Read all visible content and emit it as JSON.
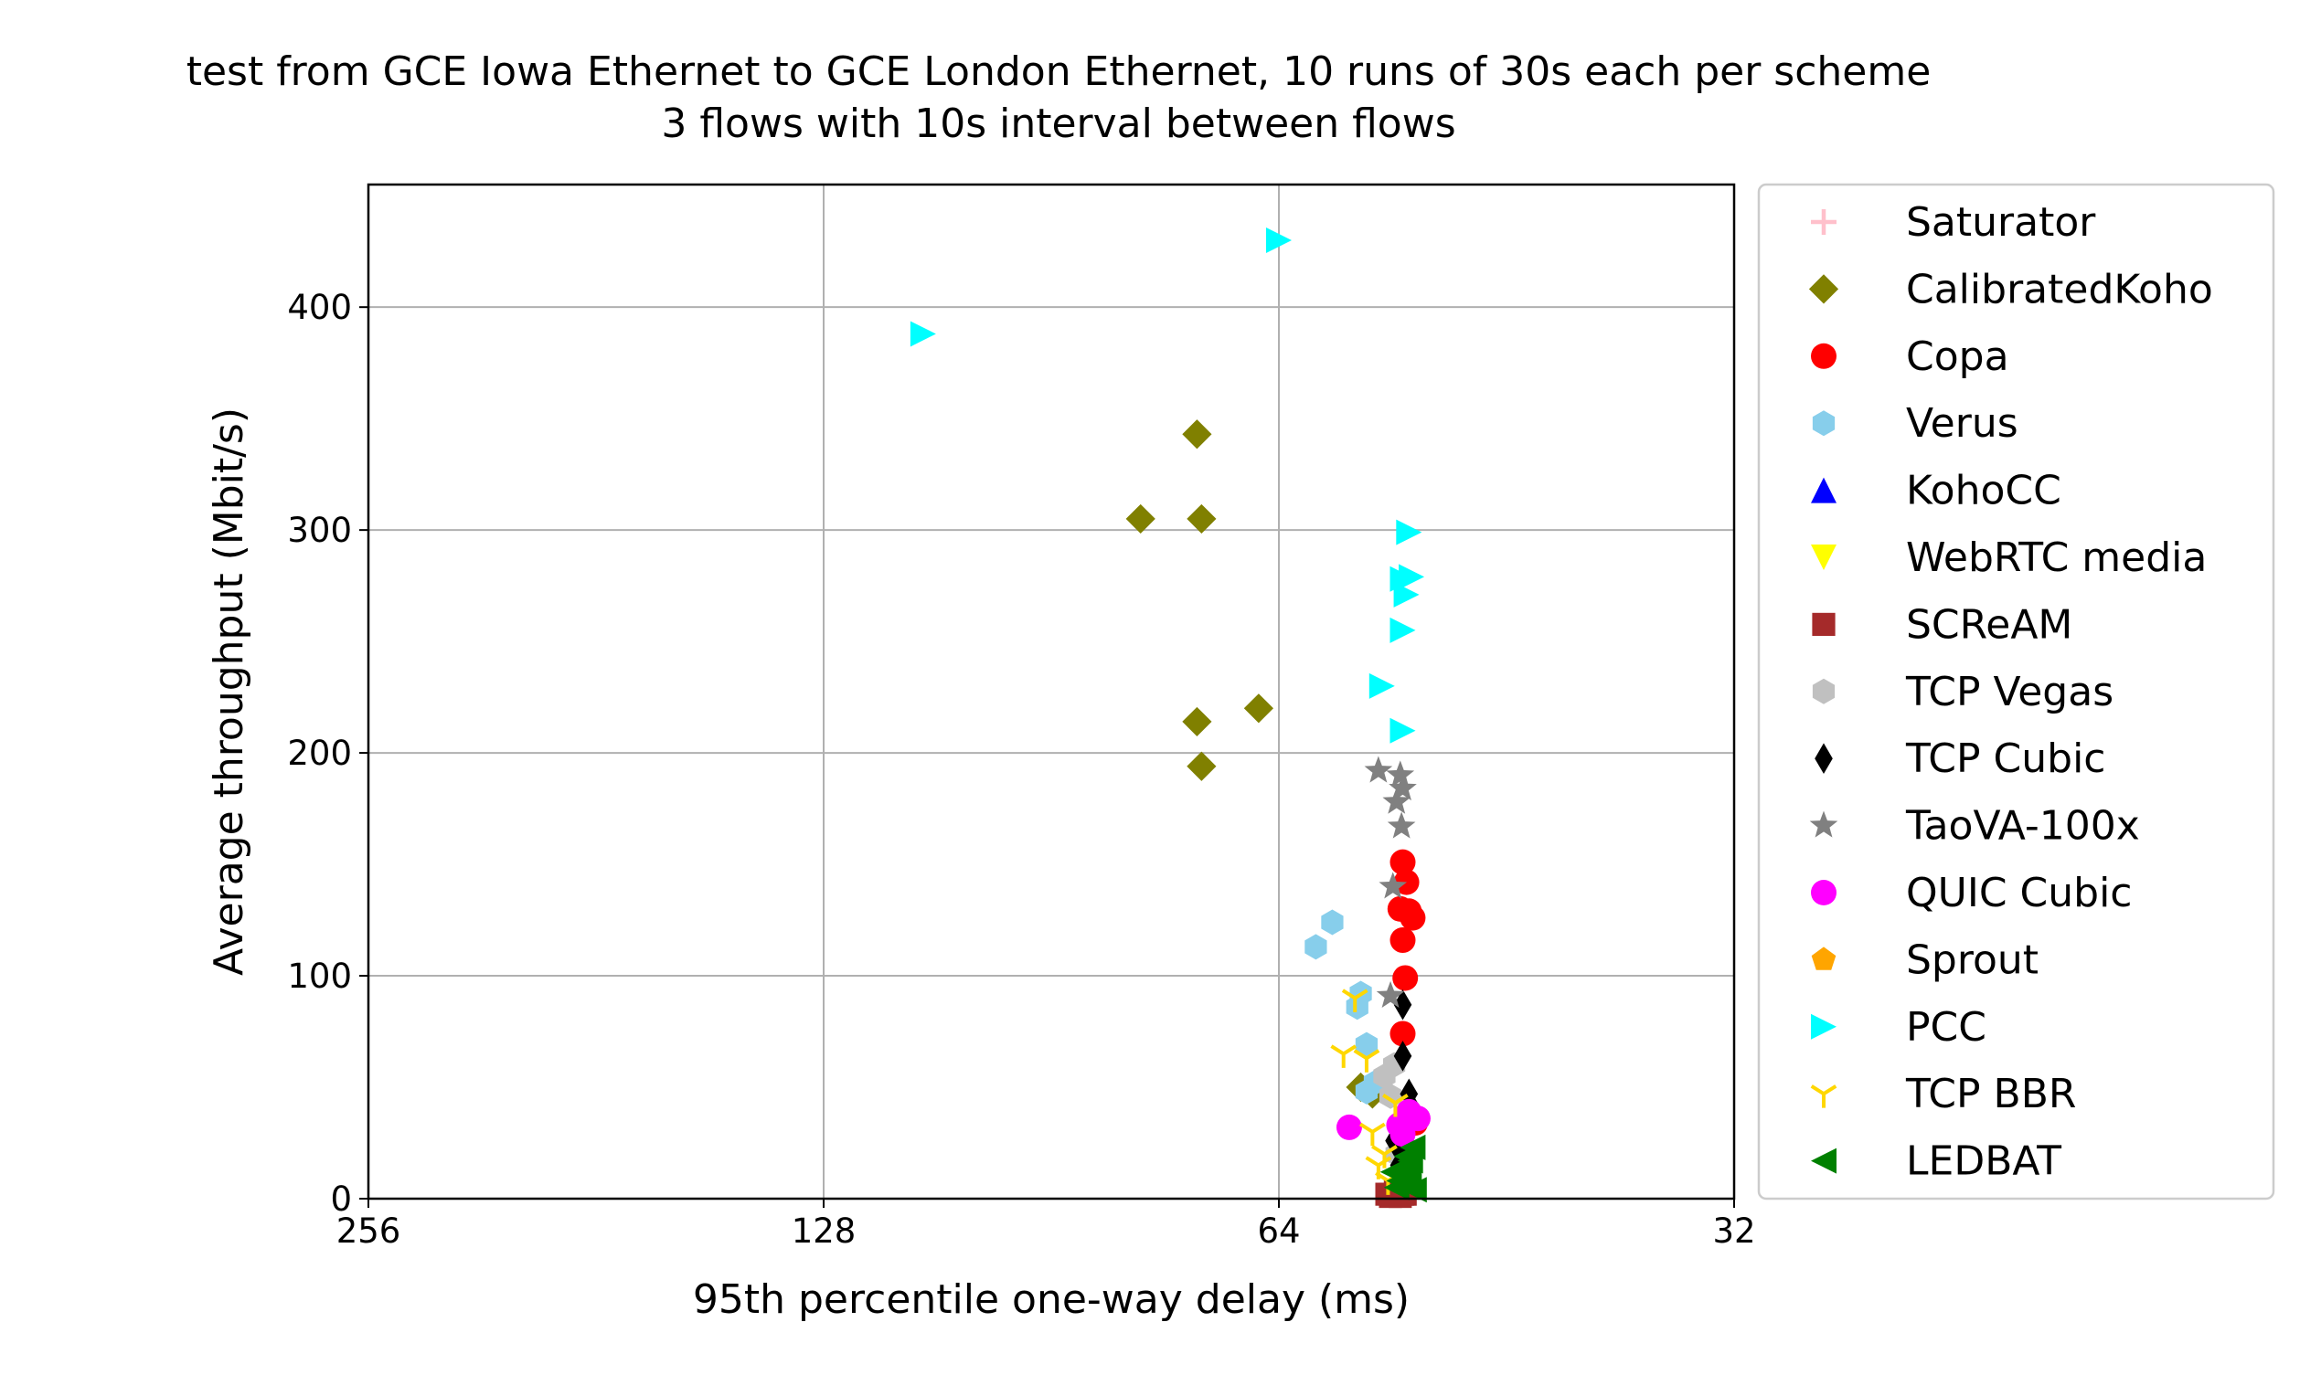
{
  "chart_data": {
    "type": "scatter",
    "title": [
      "test from GCE Iowa Ethernet to GCE London Ethernet, 10 runs of 30s each per scheme",
      "3 flows with 10s interval between flows"
    ],
    "xlabel": "95th percentile one-way delay (ms)",
    "ylabel": "Average throughput (Mbit/s)",
    "x_scale": "log2",
    "x_inverted": true,
    "xlim": [
      256,
      32
    ],
    "ylim": [
      0,
      455
    ],
    "xticks": [
      256,
      128,
      64,
      32
    ],
    "xtick_labels": [
      "256",
      "128",
      "64",
      "32"
    ],
    "yticks": [
      0,
      100,
      200,
      300,
      400
    ],
    "ytick_labels": [
      "0",
      "100",
      "200",
      "300",
      "400"
    ],
    "grid": true,
    "legend_position": "outside-right",
    "series": [
      {
        "name": "Saturator",
        "marker": "plus",
        "color": "#ffc0cb",
        "points": []
      },
      {
        "name": "CalibratedKoho",
        "marker": "diamond",
        "color": "#808000",
        "points": [
          [
            79,
            305
          ],
          [
            72.5,
            343
          ],
          [
            72,
            305
          ],
          [
            72.5,
            214
          ],
          [
            72,
            194
          ],
          [
            66,
            220
          ],
          [
            56.5,
            50
          ],
          [
            55.5,
            47
          ]
        ]
      },
      {
        "name": "Copa",
        "marker": "circle",
        "color": "#ff0000",
        "points": [
          [
            53,
            151
          ],
          [
            52.7,
            142
          ],
          [
            52.5,
            129
          ],
          [
            52.2,
            126
          ],
          [
            53.2,
            130
          ],
          [
            53,
            116
          ],
          [
            52.8,
            99
          ],
          [
            53,
            74
          ],
          [
            52.5,
            38
          ],
          [
            53,
            30
          ],
          [
            52,
            34
          ]
        ]
      },
      {
        "name": "Verus",
        "marker": "hexagon",
        "color": "#87ceeb",
        "points": [
          [
            59,
            124
          ],
          [
            60.5,
            113
          ],
          [
            56.5,
            92
          ],
          [
            56.8,
            86
          ],
          [
            56,
            69
          ],
          [
            55.3,
            52
          ],
          [
            56,
            48
          ]
        ]
      },
      {
        "name": "KohoCC",
        "marker": "triangle-up",
        "color": "#0000ff",
        "points": []
      },
      {
        "name": "WebRTC media",
        "marker": "triangle-down",
        "color": "#ffff00",
        "points": []
      },
      {
        "name": "SCReAM",
        "marker": "square",
        "color": "#a52a2a",
        "points": [
          [
            54,
            2
          ],
          [
            53.5,
            2
          ],
          [
            53,
            2
          ],
          [
            54.3,
            2
          ],
          [
            52.8,
            2
          ],
          [
            53.6,
            3
          ],
          [
            54,
            1
          ],
          [
            53.2,
            1
          ]
        ]
      },
      {
        "name": "TCP Vegas",
        "marker": "hexagon",
        "color": "#c0c0c0",
        "points": [
          [
            53.7,
            60
          ],
          [
            54.5,
            55
          ],
          [
            54,
            46
          ],
          [
            53,
            30
          ],
          [
            53.5,
            20
          ]
        ]
      },
      {
        "name": "TCP Cubic",
        "marker": "thin-diamond",
        "color": "#000000",
        "points": [
          [
            53,
            87
          ],
          [
            53,
            64
          ],
          [
            52.5,
            47
          ],
          [
            52.2,
            40
          ],
          [
            53.7,
            26
          ],
          [
            53,
            20
          ],
          [
            53.3,
            15
          ]
        ]
      },
      {
        "name": "TaoVA-100x",
        "marker": "star",
        "color": "#808080",
        "points": [
          [
            55,
            192
          ],
          [
            53.2,
            190
          ],
          [
            53,
            184
          ],
          [
            53.5,
            178
          ],
          [
            53.1,
            167
          ],
          [
            53.8,
            140
          ],
          [
            54,
            91
          ]
        ]
      },
      {
        "name": "QUIC Cubic",
        "marker": "circle",
        "color": "#ff00ff",
        "points": [
          [
            57.5,
            32
          ],
          [
            52.5,
            39
          ],
          [
            51.8,
            36
          ],
          [
            52.8,
            36
          ],
          [
            53.3,
            33
          ],
          [
            53,
            29
          ]
        ]
      },
      {
        "name": "Sprout",
        "marker": "pentagon",
        "color": "#ffa500",
        "points": []
      },
      {
        "name": "PCC",
        "marker": "triangle-right",
        "color": "#00ffff",
        "points": [
          [
            110,
            388
          ],
          [
            64,
            430
          ],
          [
            52.5,
            299
          ],
          [
            52.3,
            279
          ],
          [
            53,
            278
          ],
          [
            52.7,
            271
          ],
          [
            53,
            255
          ],
          [
            54.7,
            230
          ],
          [
            53,
            210
          ]
        ]
      },
      {
        "name": "TCP BBR",
        "marker": "tri-down",
        "color": "#ffd700",
        "points": [
          [
            57,
            90
          ],
          [
            58,
            65
          ],
          [
            56,
            63
          ],
          [
            53.6,
            43
          ],
          [
            55.5,
            30
          ],
          [
            54.5,
            20
          ],
          [
            55,
            15
          ],
          [
            54.2,
            8
          ]
        ]
      },
      {
        "name": "LEDBAT",
        "marker": "triangle-left",
        "color": "#008000",
        "points": [
          [
            52.2,
            23
          ],
          [
            52.7,
            19
          ],
          [
            52.4,
            17
          ],
          [
            53,
            13
          ],
          [
            52.5,
            10
          ],
          [
            53.3,
            8
          ],
          [
            53.8,
            12
          ],
          [
            52.6,
            6
          ],
          [
            53.5,
            5
          ],
          [
            52.1,
            4
          ]
        ]
      }
    ]
  }
}
